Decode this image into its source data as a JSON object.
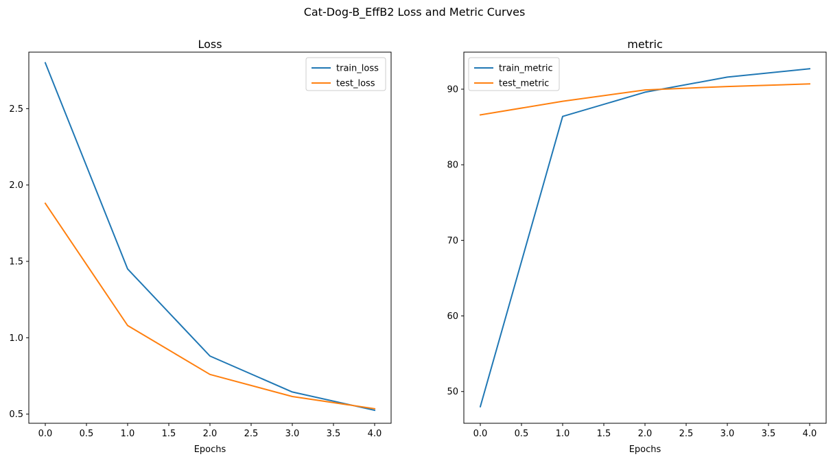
{
  "figure": {
    "title": "Cat-Dog-B_EffB2 Loss and Metric Curves"
  },
  "colors": {
    "train": "#1f77b4",
    "test": "#ff7f0e",
    "legend_border": "#cccccc"
  },
  "chart_data": [
    {
      "type": "line",
      "title": "Loss",
      "xlabel": "Epochs",
      "ylabel": "",
      "x": [
        0,
        1,
        2,
        3,
        4
      ],
      "xlim": [
        -0.2,
        4.2
      ],
      "ylim": [
        0.44,
        2.87
      ],
      "xticks": [
        0,
        0.5,
        1,
        1.5,
        2,
        2.5,
        3,
        3.5,
        4
      ],
      "xtick_labels": [
        "0.0",
        "0.5",
        "1.0",
        "1.5",
        "2.0",
        "2.5",
        "3.0",
        "3.5",
        "4.0"
      ],
      "yticks": [
        0.5,
        1.0,
        1.5,
        2.0,
        2.5
      ],
      "ytick_labels": [
        "0.5",
        "1.0",
        "1.5",
        "2.0",
        "2.5"
      ],
      "legend": "top-right",
      "grid": false,
      "series": [
        {
          "name": "train_loss",
          "values": [
            2.8,
            1.45,
            0.88,
            0.645,
            0.525
          ]
        },
        {
          "name": "test_loss",
          "values": [
            1.88,
            1.08,
            0.76,
            0.615,
            0.535
          ]
        }
      ]
    },
    {
      "type": "line",
      "title": "metric",
      "xlabel": "Epochs",
      "ylabel": "",
      "x": [
        0,
        1,
        2,
        3,
        4
      ],
      "xlim": [
        -0.2,
        4.2
      ],
      "ylim": [
        45.8,
        94.9
      ],
      "xticks": [
        0,
        0.5,
        1,
        1.5,
        2,
        2.5,
        3,
        3.5,
        4
      ],
      "xtick_labels": [
        "0.0",
        "0.5",
        "1.0",
        "1.5",
        "2.0",
        "2.5",
        "3.0",
        "3.5",
        "4.0"
      ],
      "yticks": [
        50,
        60,
        70,
        80,
        90
      ],
      "ytick_labels": [
        "50",
        "60",
        "70",
        "80",
        "90"
      ],
      "legend": "top-left",
      "grid": false,
      "series": [
        {
          "name": "train_metric",
          "values": [
            48.0,
            86.4,
            89.6,
            91.6,
            92.7
          ]
        },
        {
          "name": "test_metric",
          "values": [
            86.6,
            88.4,
            89.9,
            90.35,
            90.7
          ]
        }
      ]
    }
  ]
}
